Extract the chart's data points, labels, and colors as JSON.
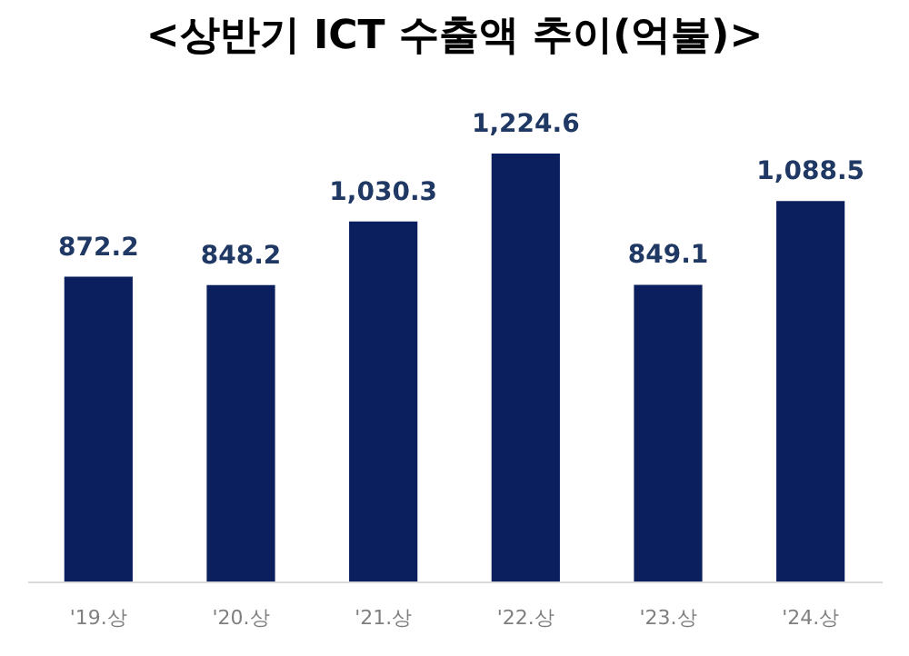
{
  "chart_data": {
    "type": "bar",
    "title": "<상반기 ICT 수출액 추이(억불)>",
    "categories": [
      "'19.상",
      "'20.상",
      "'21.상",
      "'22.상",
      "'23.상",
      "'24.상"
    ],
    "values": [
      872.2,
      848.2,
      1030.3,
      1224.6,
      849.1,
      1088.5
    ],
    "value_labels": [
      "872.2",
      "848.2",
      "1,030.3",
      "1,224.6",
      "849.1",
      "1,088.5"
    ],
    "color": "#0b1f5e",
    "tick_labels": "x",
    "grid": false
  }
}
